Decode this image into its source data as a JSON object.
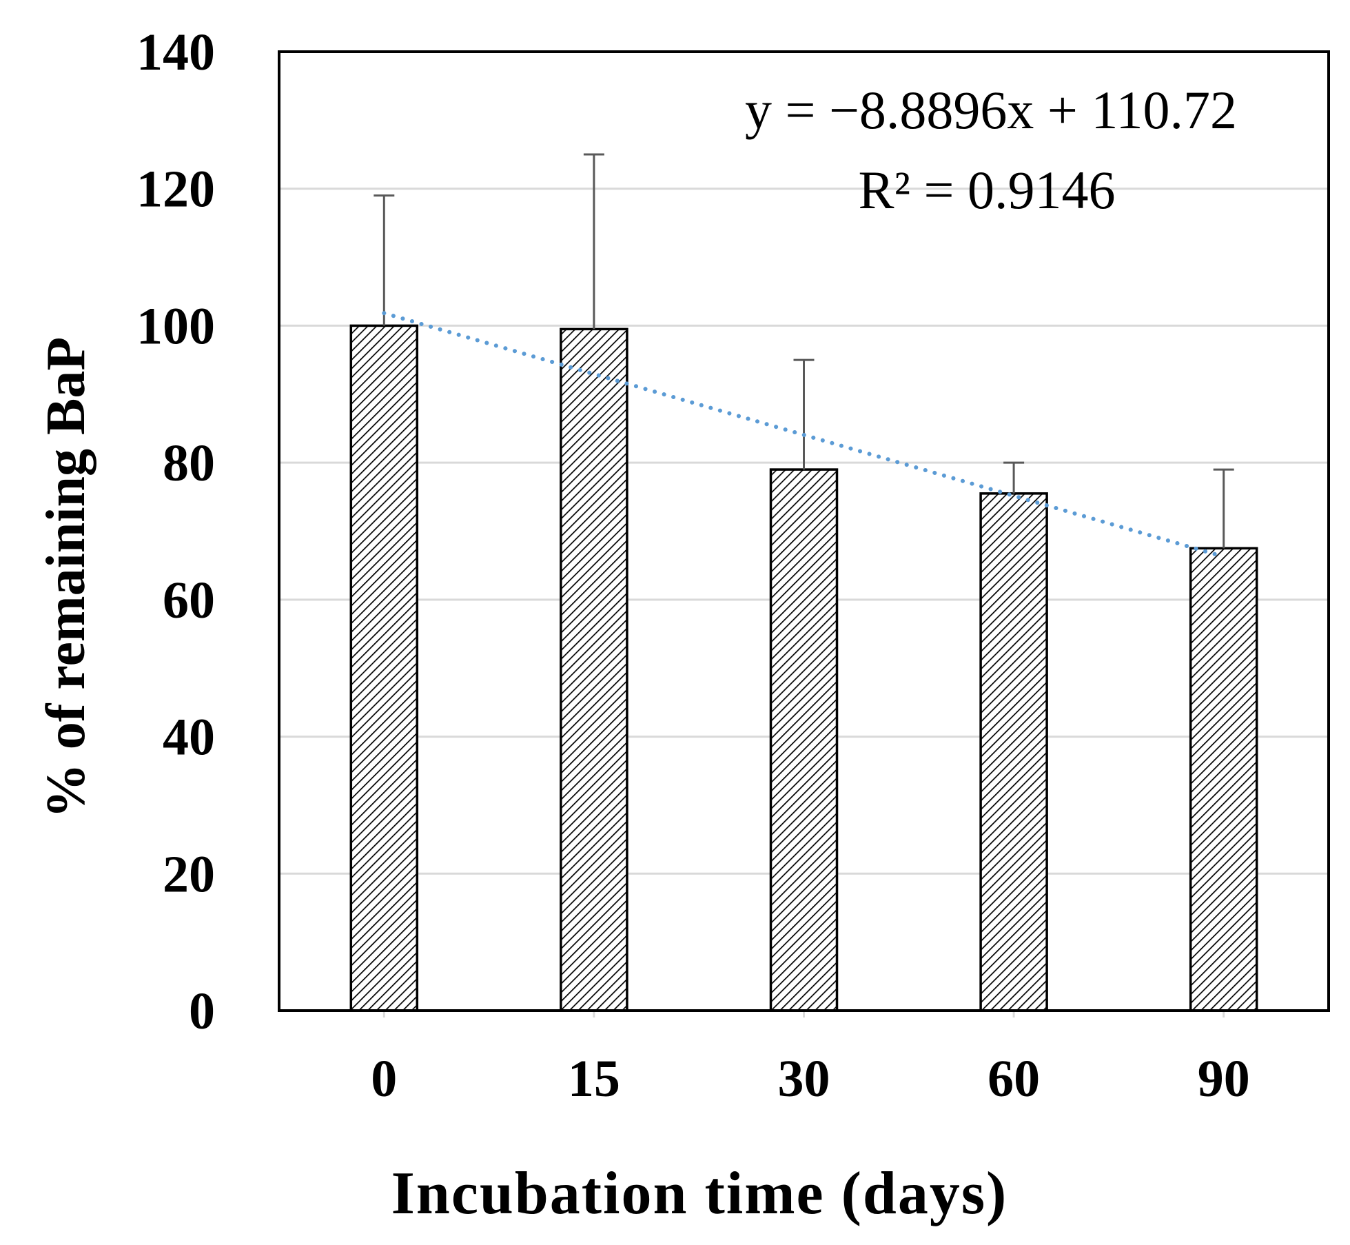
{
  "chart_data": {
    "type": "bar",
    "categories": [
      "0",
      "15",
      "30",
      "60",
      "90"
    ],
    "values": [
      100,
      99.5,
      79,
      75.5,
      67.5
    ],
    "error_upper": [
      119,
      125,
      95,
      80,
      79
    ],
    "xlabel": "Incubation time (days)",
    "ylabel": "% of remaining BaP",
    "ylim": [
      0,
      140
    ],
    "yticks": [
      "0",
      "20",
      "40",
      "60",
      "80",
      "100",
      "120",
      "140"
    ],
    "ytick_values": [
      0,
      20,
      40,
      60,
      80,
      100,
      120,
      140
    ],
    "grid": true,
    "trendline": {
      "style": "dotted",
      "color": "#5b9bd5",
      "slope": -8.8896,
      "intercept": 110.72,
      "equation": "y = −8.8896x + 110.72",
      "r2_label": "R² = 0.9146"
    },
    "bar_fill": "hatched"
  }
}
